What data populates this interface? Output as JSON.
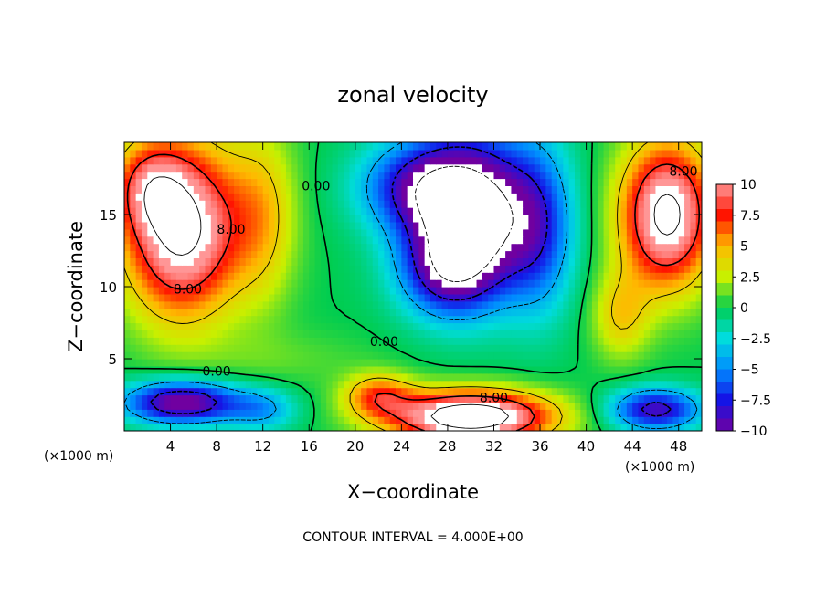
{
  "chart_data": {
    "type": "heatmap",
    "title": "zonal velocity",
    "xlabel": "X−coordinate",
    "ylabel": "Z−coordinate",
    "x_unit": "(×1000 m)",
    "z_unit": "(×1000 m)",
    "xlim": [
      0,
      50
    ],
    "ylim": [
      0,
      20
    ],
    "x_ticks": [
      "4",
      "8",
      "12",
      "16",
      "20",
      "24",
      "28",
      "32",
      "36",
      "40",
      "44",
      "48"
    ],
    "y_ticks": [
      "5",
      "10",
      "15"
    ],
    "colorbar": {
      "range": [
        -10,
        10
      ],
      "tick_labels": [
        "10",
        "7.5",
        "5",
        "2.5",
        "0",
        "−2.5",
        "−5",
        "−7.5",
        "−10"
      ]
    },
    "contour_labels": [
      "8.00",
      "0.00",
      "0.00",
      "8.00",
      "0.00",
      "8.00",
      "8.00"
    ],
    "footer": "CONTOUR INTERVAL = 4.000E+00",
    "features": [
      {
        "x": 30,
        "z": 15,
        "u": -14,
        "sx": 5.5,
        "sz": 5.5
      },
      {
        "x": 28,
        "z": 11,
        "u": -6,
        "sx": 4,
        "sz": 3
      },
      {
        "x": 25,
        "z": 17,
        "u": -6,
        "sx": 5,
        "sz": 3
      },
      {
        "x": 5,
        "z": 14,
        "u": 13,
        "sx": 5,
        "sz": 6
      },
      {
        "x": 2,
        "z": 17,
        "u": 5,
        "sx": 3,
        "sz": 3
      },
      {
        "x": 47,
        "z": 15,
        "u": 13,
        "sx": 4,
        "sz": 5
      },
      {
        "x": 43,
        "z": 8,
        "u": 4,
        "sx": 2.5,
        "sz": 3
      },
      {
        "x": 30,
        "z": 1.0,
        "u": 15,
        "sx": 7,
        "sz": 1.8
      },
      {
        "x": 22,
        "z": 2.5,
        "u": 6,
        "sx": 3,
        "sz": 1.5
      },
      {
        "x": 5,
        "z": 2,
        "u": -11,
        "sx": 5,
        "sz": 1.5
      },
      {
        "x": 12,
        "z": 1.5,
        "u": -4,
        "sx": 3,
        "sz": 1.5
      },
      {
        "x": 46,
        "z": 1.5,
        "u": -9,
        "sx": 4,
        "sz": 1.5
      },
      {
        "x": 36,
        "z": 14,
        "u": -5,
        "sx": 3,
        "sz": 6
      },
      {
        "x": 12,
        "z": 15,
        "u": 4,
        "sx": 3,
        "sz": 6
      },
      {
        "x": 14,
        "z": 5,
        "u": 1,
        "sx": 8,
        "sz": 2
      }
    ],
    "grid": false
  }
}
